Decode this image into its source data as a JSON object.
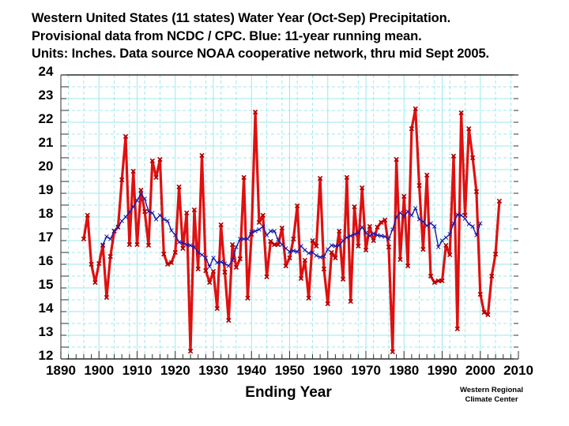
{
  "title_lines": [
    "Western United States (11 states) Water Year (Oct-Sep) Precipitation.",
    "Provisional data from NCDC / CPC.  Blue:  11-year running mean.",
    "Units:  Inches.  Data source NOAA  cooperative network, thru mid Sept 2005."
  ],
  "credit": [
    "Western Regional",
    "Climate Center"
  ],
  "colors": {
    "annual": "#e01010",
    "running_mean": "#1a1aa8",
    "grid": "#9ee8ee",
    "axis": "#000000"
  },
  "chart_data": {
    "type": "line",
    "title": "Western United States (11 states) Water Year (Oct-Sep) Precipitation.",
    "xlabel": "Ending Year",
    "ylabel": "",
    "xlim": [
      1890,
      2010
    ],
    "ylim": [
      12,
      24
    ],
    "xticks": [
      1890,
      1900,
      1910,
      1920,
      1930,
      1940,
      1950,
      1960,
      1970,
      1980,
      1990,
      2000,
      2010
    ],
    "yticks": [
      12,
      13,
      14,
      15,
      16,
      17,
      18,
      19,
      20,
      21,
      22,
      23,
      24
    ],
    "grid": true,
    "series": [
      {
        "name": "Annual water year precipitation",
        "color": "#e01010",
        "marker": "x",
        "x": [
          1896,
          1897,
          1898,
          1899,
          1900,
          1901,
          1902,
          1903,
          1904,
          1905,
          1906,
          1907,
          1908,
          1909,
          1910,
          1911,
          1912,
          1913,
          1914,
          1915,
          1916,
          1917,
          1918,
          1919,
          1920,
          1921,
          1922,
          1923,
          1924,
          1925,
          1926,
          1927,
          1928,
          1929,
          1930,
          1931,
          1932,
          1933,
          1934,
          1935,
          1936,
          1937,
          1938,
          1939,
          1940,
          1941,
          1942,
          1943,
          1944,
          1945,
          1946,
          1947,
          1948,
          1949,
          1950,
          1951,
          1952,
          1953,
          1954,
          1955,
          1956,
          1957,
          1958,
          1959,
          1960,
          1961,
          1962,
          1963,
          1964,
          1965,
          1966,
          1967,
          1968,
          1969,
          1970,
          1971,
          1972,
          1973,
          1974,
          1975,
          1976,
          1977,
          1978,
          1979,
          1980,
          1981,
          1982,
          1983,
          1984,
          1985,
          1986,
          1987,
          1988,
          1989,
          1990,
          1991,
          1992,
          1993,
          1994,
          1995,
          1996,
          1997,
          1998,
          1999,
          2000,
          2001,
          2002,
          2003,
          2004,
          2005
        ],
        "values": [
          17.07,
          18.07,
          16.0,
          15.23,
          16.03,
          16.8,
          14.6,
          16.33,
          17.4,
          17.57,
          19.57,
          21.4,
          16.83,
          19.93,
          16.83,
          19.13,
          18.23,
          16.8,
          20.37,
          19.67,
          20.43,
          16.43,
          16.0,
          16.07,
          16.5,
          19.27,
          16.67,
          18.17,
          12.33,
          18.3,
          15.8,
          20.6,
          15.73,
          15.23,
          15.7,
          14.13,
          17.67,
          15.67,
          13.63,
          16.83,
          15.87,
          16.23,
          19.67,
          14.57,
          17.27,
          22.43,
          17.77,
          18.07,
          15.47,
          16.97,
          16.83,
          16.83,
          17.53,
          15.93,
          16.27,
          17.07,
          18.47,
          15.4,
          16.17,
          14.57,
          17.0,
          16.77,
          19.63,
          15.8,
          14.33,
          16.5,
          16.27,
          17.4,
          15.37,
          19.67,
          14.43,
          18.43,
          16.77,
          19.23,
          16.6,
          17.6,
          17.0,
          17.57,
          17.77,
          17.87,
          16.73,
          12.3,
          20.43,
          16.2,
          18.87,
          15.93,
          21.73,
          22.57,
          19.33,
          16.63,
          19.77,
          15.5,
          15.23,
          15.3,
          15.3,
          16.8,
          16.4,
          20.57,
          13.27,
          22.4,
          18.07,
          21.73,
          20.5,
          19.07,
          14.73,
          13.97,
          13.87,
          15.5,
          16.43,
          18.67
        ]
      },
      {
        "name": "11-year running mean",
        "color": "#1a1aa8",
        "marker": "x",
        "x": [
          1901,
          1902,
          1903,
          1904,
          1905,
          1906,
          1907,
          1908,
          1909,
          1910,
          1911,
          1912,
          1913,
          1914,
          1915,
          1916,
          1917,
          1918,
          1919,
          1920,
          1921,
          1922,
          1923,
          1924,
          1925,
          1926,
          1927,
          1928,
          1929,
          1930,
          1931,
          1932,
          1933,
          1934,
          1935,
          1936,
          1937,
          1938,
          1939,
          1940,
          1941,
          1942,
          1943,
          1944,
          1945,
          1946,
          1947,
          1948,
          1949,
          1950,
          1951,
          1952,
          1953,
          1954,
          1955,
          1956,
          1957,
          1958,
          1959,
          1960,
          1961,
          1962,
          1963,
          1964,
          1965,
          1966,
          1967,
          1968,
          1969,
          1970,
          1971,
          1972,
          1973,
          1974,
          1975,
          1976,
          1977,
          1978,
          1979,
          1980,
          1981,
          1982,
          1983,
          1984,
          1985,
          1986,
          1987,
          1988,
          1989,
          1990,
          1991,
          1992,
          1993,
          1994,
          1995,
          1996,
          1997,
          1998,
          1999,
          2000
        ],
        "values": [
          16.83,
          17.17,
          17.07,
          17.4,
          17.57,
          17.83,
          18.0,
          18.2,
          18.43,
          18.7,
          18.97,
          18.77,
          18.23,
          18.17,
          17.9,
          18.07,
          17.9,
          17.83,
          17.43,
          17.23,
          16.93,
          16.9,
          16.83,
          16.8,
          16.73,
          16.5,
          16.4,
          16.27,
          15.9,
          16.27,
          16.07,
          16.1,
          16.03,
          15.93,
          16.17,
          16.73,
          17.07,
          17.07,
          17.07,
          17.37,
          17.4,
          17.47,
          17.6,
          17.23,
          17.4,
          17.4,
          17.03,
          16.83,
          16.67,
          16.53,
          16.57,
          16.53,
          16.77,
          16.6,
          16.47,
          16.5,
          16.37,
          16.3,
          16.33,
          16.63,
          16.8,
          16.77,
          16.8,
          17.0,
          17.13,
          17.2,
          17.27,
          17.33,
          17.57,
          17.33,
          17.2,
          17.3,
          17.23,
          17.2,
          17.17,
          17.07,
          17.47,
          18.0,
          18.17,
          18.03,
          18.23,
          18.07,
          18.37,
          17.9,
          17.8,
          17.63,
          17.73,
          17.6,
          16.73,
          17.0,
          17.13,
          17.27,
          17.73,
          18.1,
          18.07,
          17.93,
          17.7,
          17.6,
          17.23,
          17.73
        ]
      }
    ]
  }
}
